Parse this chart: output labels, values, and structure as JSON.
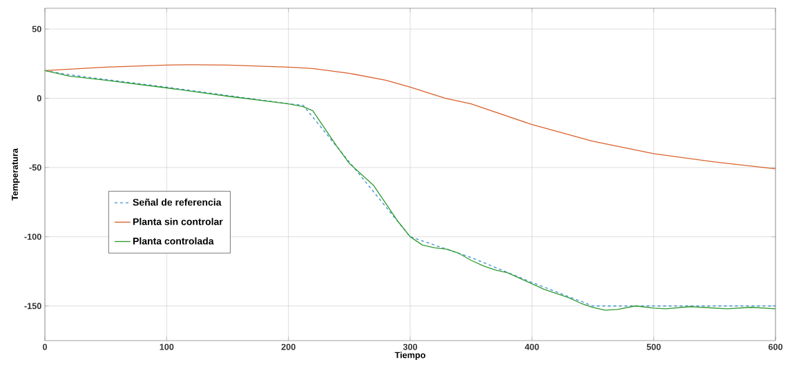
{
  "chart_data": {
    "type": "line",
    "xlabel": "Tiempo",
    "ylabel": "Temperatura",
    "xlim": [
      0,
      600
    ],
    "ylim": [
      -175,
      65
    ],
    "xticks": [
      0,
      100,
      200,
      300,
      400,
      500,
      600
    ],
    "yticks": [
      -150,
      -100,
      -50,
      0,
      50
    ],
    "grid": true,
    "legend": "left",
    "series": [
      {
        "name": "Señal de referencia",
        "color": "#3a8fd0",
        "line_style": "dashed",
        "x": [
          0,
          20,
          50,
          100,
          150,
          200,
          212,
          300,
          350,
          400,
          450,
          600
        ],
        "values": [
          20,
          17,
          13.5,
          8,
          2,
          -4,
          -5,
          -100,
          -115,
          -133,
          -150,
          -150
        ]
      },
      {
        "name": "Planta sin controlar",
        "color": "#d9602a",
        "line_style": "solid",
        "x": [
          0,
          50,
          100,
          120,
          150,
          200,
          220,
          250,
          280,
          300,
          329,
          350,
          400,
          450,
          500,
          550,
          600
        ],
        "values": [
          20,
          22.5,
          24,
          24.2,
          24,
          22.5,
          21.5,
          18,
          13,
          8,
          0,
          -4,
          -19,
          -31,
          -40,
          -46,
          -51
        ]
      },
      {
        "name": "Planta controlada",
        "color": "#2e9a2e",
        "line_style": "solid",
        "x": [
          0,
          20,
          50,
          100,
          150,
          200,
          212,
          220,
          230,
          240,
          250,
          260,
          270,
          280,
          290,
          300,
          310,
          320,
          330,
          340,
          350,
          360,
          370,
          380,
          390,
          400,
          410,
          420,
          430,
          440,
          450,
          460,
          470,
          485,
          500,
          510,
          530,
          550,
          560,
          580,
          600
        ],
        "values": [
          20,
          16,
          13,
          7.5,
          1.5,
          -4,
          -6,
          -9,
          -22,
          -35,
          -47,
          -55,
          -63,
          -76,
          -89,
          -100,
          -106,
          -108,
          -109,
          -112,
          -117,
          -121,
          -124,
          -126,
          -130,
          -134,
          -138,
          -141,
          -144,
          -148,
          -151,
          -153,
          -152.5,
          -150,
          -151.5,
          -152,
          -150.5,
          -151.5,
          -152,
          -151,
          -152
        ]
      }
    ]
  }
}
